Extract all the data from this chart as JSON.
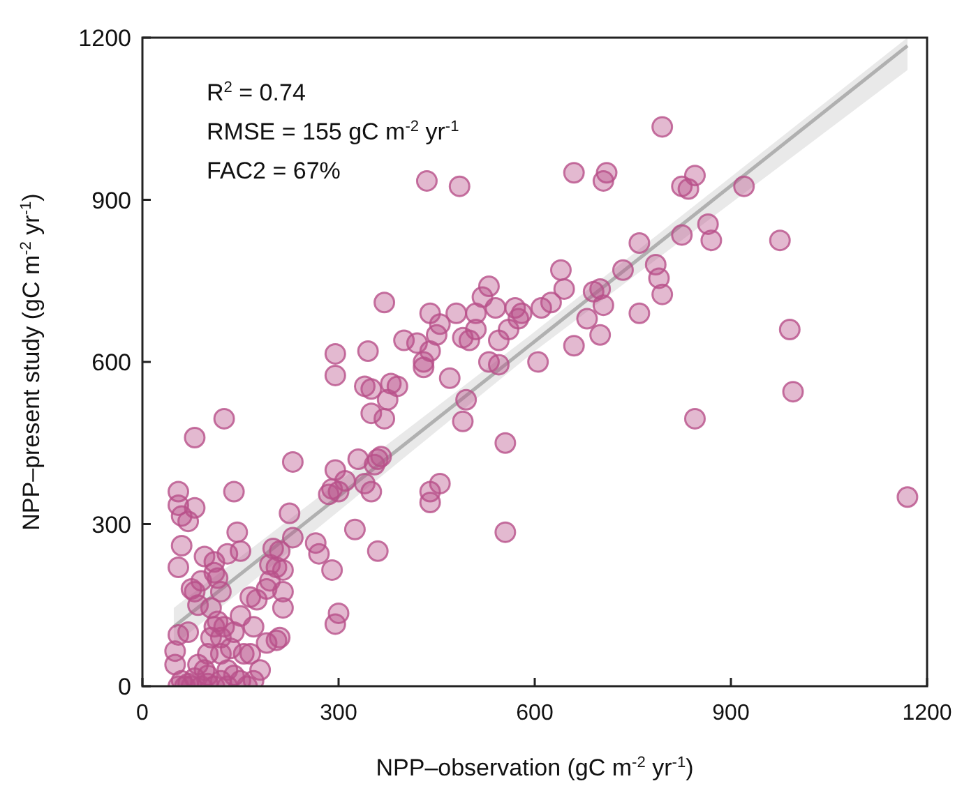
{
  "chart_data": {
    "type": "scatter",
    "xlabel": "NPP–observation (gC m$^{-2}$ yr$^{-1}$)",
    "ylabel": "NPP–present study (gC m$^{-2}$ yr$^{-1}$)",
    "annotations": [
      "R$^{2}$ = 0.74",
      "RMSE = 155 gC m$^{-2}$ yr$^{-1}$",
      "FAC2 = 67%"
    ],
    "xlim": [
      0,
      1200
    ],
    "ylim": [
      0,
      1200
    ],
    "xticks": [
      0,
      300,
      600,
      900,
      1200
    ],
    "yticks": [
      0,
      300,
      600,
      900,
      1200
    ],
    "marker": "circle",
    "series": [
      {
        "type": "line",
        "marker": "none",
        "color": "#b0b0b0",
        "x": [
          48,
          600,
          1170
        ],
        "values": [
          110,
          638,
          1185
        ],
        "lower": [
          75,
          620,
          1140
        ],
        "upper": [
          145,
          656,
          1200
        ]
      },
      {
        "color": "#b8508a",
        "x": [
          435,
          485,
          660,
          710,
          705,
          795,
          825,
          835,
          845,
          920,
          865,
          870,
          975,
          990,
          995,
          1170,
          845,
          825,
          760,
          785,
          790,
          795,
          760,
          735,
          700,
          690,
          705,
          700,
          680,
          660,
          640,
          645,
          625,
          610,
          605,
          580,
          570,
          575,
          560,
          545,
          540,
          530,
          520,
          510,
          510,
          500,
          490,
          480,
          470,
          495,
          490,
          530,
          545,
          555,
          555,
          455,
          440,
          440,
          430,
          440,
          450,
          455,
          440,
          420,
          430,
          400,
          390,
          380,
          375,
          370,
          370,
          350,
          345,
          350,
          360,
          365,
          355,
          340,
          350,
          330,
          310,
          300,
          295,
          290,
          285,
          295,
          295,
          340,
          360,
          325,
          300,
          295,
          290,
          270,
          265,
          230,
          225,
          230,
          210,
          200,
          205,
          195,
          195,
          190,
          215,
          215,
          215,
          210,
          205,
          190,
          165,
          170,
          155,
          165,
          150,
          145,
          140,
          130,
          125,
          120,
          110,
          110,
          115,
          120,
          110,
          105,
          100,
          100,
          95,
          90,
          85,
          75,
          80,
          80,
          70,
          80,
          60,
          55,
          55,
          60,
          55,
          70,
          55,
          50,
          50,
          60,
          70,
          80,
          90,
          100,
          110,
          120,
          130,
          140,
          150,
          160,
          130,
          140,
          150,
          135,
          120,
          95,
          85,
          55,
          65,
          75,
          180,
          170,
          105,
          175,
          115,
          125
        ],
        "values": [
          935,
          925,
          950,
          950,
          935,
          1035,
          925,
          920,
          945,
          925,
          855,
          825,
          825,
          660,
          545,
          350,
          495,
          835,
          820,
          780,
          755,
          725,
          690,
          770,
          735,
          730,
          705,
          650,
          680,
          630,
          770,
          735,
          710,
          700,
          600,
          690,
          700,
          680,
          660,
          640,
          700,
          740,
          720,
          690,
          660,
          640,
          645,
          690,
          570,
          530,
          490,
          600,
          595,
          450,
          285,
          375,
          360,
          340,
          600,
          620,
          650,
          670,
          690,
          635,
          590,
          640,
          555,
          560,
          530,
          495,
          710,
          550,
          620,
          505,
          420,
          425,
          410,
          375,
          360,
          420,
          380,
          360,
          400,
          365,
          355,
          575,
          615,
          555,
          250,
          290,
          135,
          115,
          215,
          245,
          265,
          415,
          320,
          275,
          250,
          255,
          220,
          225,
          195,
          180,
          215,
          175,
          145,
          90,
          85,
          80,
          165,
          110,
          60,
          60,
          250,
          285,
          360,
          245,
          495,
          175,
          230,
          210,
          200,
          90,
          110,
          90,
          60,
          20,
          240,
          195,
          150,
          180,
          175,
          330,
          305,
          460,
          315,
          360,
          335,
          260,
          220,
          100,
          95,
          65,
          40,
          10,
          5,
          15,
          0,
          5,
          0,
          10,
          30,
          20,
          10,
          0,
          0,
          100,
          130,
          70,
          60,
          30,
          40,
          0,
          0,
          0,
          30,
          10,
          145,
          160,
          120,
          110
        ]
      }
    ]
  }
}
